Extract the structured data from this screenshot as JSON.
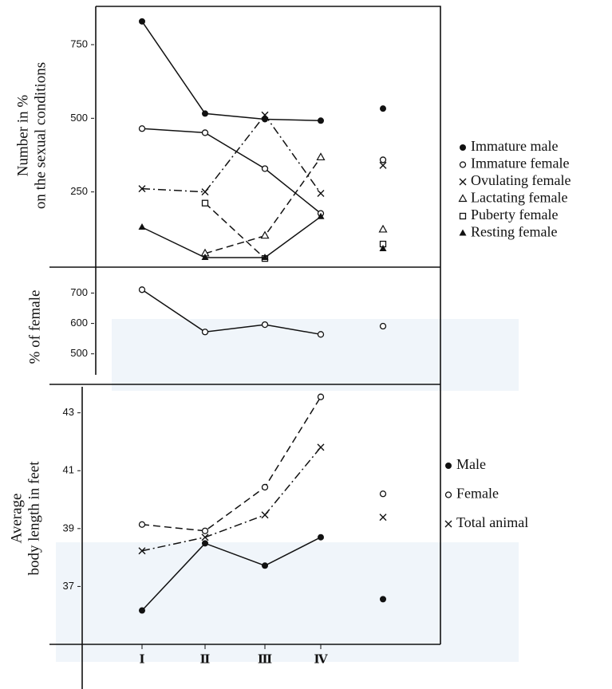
{
  "chart_data": [
    {
      "type": "line",
      "ylabel": [
        "Number in %",
        "on the sexual conditions"
      ],
      "ylim": [
        0,
        880
      ],
      "yticks": [
        250,
        500,
        750
      ],
      "series": [
        {
          "name": "Immature male",
          "color": "#111",
          "marker": "filled-circle",
          "line_style": "solid",
          "values": [
            829,
            516,
            497,
            492
          ],
          "overall": 533
        },
        {
          "name": "Immature female",
          "color": "#111",
          "marker": "open-circle",
          "line_style": "solid",
          "values": [
            465,
            451,
            329,
            177
          ],
          "overall": 359
        },
        {
          "name": "Ovulating female",
          "color": "#111",
          "marker": "cross",
          "line_style": "dashdot",
          "values": [
            261,
            250,
            511,
            245
          ],
          "overall": 340
        },
        {
          "name": "Lactating female",
          "color": "#111",
          "marker": "open-triangle",
          "line_style": "dashed",
          "values": [
            null,
            41,
            101,
            367
          ],
          "overall": 122
        },
        {
          "name": "Puberty female",
          "color": "#111",
          "marker": "open-square",
          "line_style": "dashed",
          "values": [
            null,
            212,
            24,
            null
          ],
          "overall": 73
        },
        {
          "name": "Resting female",
          "color": "#111",
          "marker": "filled-triangle",
          "line_style": "solid",
          "values": [
            130,
            27,
            27,
            166
          ],
          "overall": 57
        }
      ]
    },
    {
      "type": "line",
      "ylabel": [
        "% of female"
      ],
      "ylim": [
        410,
        780
      ],
      "yticks": [
        500,
        600,
        700
      ],
      "color": "#111",
      "marker": "open-circle",
      "line_style": "solid",
      "values": [
        711,
        572,
        596,
        564
      ],
      "overall": 591
    },
    {
      "type": "line",
      "ylabel": [
        "Average",
        "body length in feet"
      ],
      "categories": [
        "Ⅰ",
        "Ⅱ",
        "Ⅲ",
        "Ⅳ"
      ],
      "ylim": [
        35,
        43.9
      ],
      "yticks": [
        37,
        39,
        41,
        43
      ],
      "series": [
        {
          "name": "Male",
          "color": "#111",
          "marker": "filled-circle",
          "line_style": "solid",
          "values": [
            36.17,
            38.49,
            37.72,
            38.7
          ],
          "overall": 36.56
        },
        {
          "name": "Female",
          "color": "#111",
          "marker": "open-circle",
          "line_style": "dashed",
          "values": [
            39.14,
            38.92,
            40.43,
            43.55
          ],
          "overall": 40.2
        },
        {
          "name": "Total animal",
          "color": "#111",
          "marker": "cross",
          "line_style": "dashdot",
          "values": [
            38.23,
            38.7,
            39.47,
            41.81
          ],
          "overall": 39.39
        }
      ]
    }
  ]
}
